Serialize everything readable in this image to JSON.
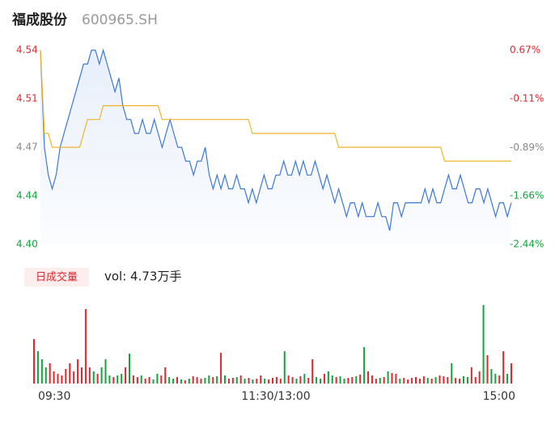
{
  "header": {
    "title": "福成股份",
    "code": "600965.SH"
  },
  "chart_data": [
    {
      "type": "line",
      "series": [
        {
          "name": "price",
          "color": "#3c78d8",
          "values": [
            4.54,
            4.47,
            4.45,
            4.44,
            4.45,
            4.47,
            4.48,
            4.49,
            4.5,
            4.51,
            4.52,
            4.53,
            4.53,
            4.54,
            4.54,
            4.53,
            4.54,
            4.53,
            4.52,
            4.51,
            4.52,
            4.5,
            4.49,
            4.49,
            4.48,
            4.48,
            4.49,
            4.48,
            4.48,
            4.49,
            4.48,
            4.47,
            4.48,
            4.49,
            4.48,
            4.47,
            4.47,
            4.46,
            4.46,
            4.45,
            4.46,
            4.46,
            4.47,
            4.45,
            4.44,
            4.45,
            4.44,
            4.45,
            4.44,
            4.44,
            4.45,
            4.44,
            4.44,
            4.43,
            4.44,
            4.43,
            4.44,
            4.45,
            4.44,
            4.44,
            4.45,
            4.45,
            4.46,
            4.45,
            4.45,
            4.46,
            4.45,
            4.46,
            4.45,
            4.45,
            4.46,
            4.45,
            4.44,
            4.45,
            4.44,
            4.43,
            4.44,
            4.43,
            4.42,
            4.43,
            4.43,
            4.42,
            4.43,
            4.42,
            4.42,
            4.42,
            4.43,
            4.42,
            4.42,
            4.41,
            4.43,
            4.43,
            4.42,
            4.43,
            4.43,
            4.43,
            4.43,
            4.43,
            4.44,
            4.43,
            4.44,
            4.43,
            4.43,
            4.44,
            4.45,
            4.44,
            4.44,
            4.45,
            4.44,
            4.43,
            4.43,
            4.44,
            4.44,
            4.43,
            4.44,
            4.43,
            4.42,
            4.43,
            4.43,
            4.42,
            4.43
          ]
        },
        {
          "name": "average",
          "color": "#f0b429",
          "values": [
            4.54,
            4.48,
            4.48,
            4.47,
            4.47,
            4.47,
            4.47,
            4.47,
            4.47,
            4.47,
            4.47,
            4.48,
            4.49,
            4.49,
            4.49,
            4.49,
            4.5,
            4.5,
            4.5,
            4.5,
            4.5,
            4.5,
            4.5,
            4.5,
            4.5,
            4.5,
            4.5,
            4.5,
            4.5,
            4.5,
            4.5,
            4.49,
            4.49,
            4.49,
            4.49,
            4.49,
            4.49,
            4.49,
            4.49,
            4.49,
            4.49,
            4.49,
            4.49,
            4.49,
            4.49,
            4.49,
            4.49,
            4.49,
            4.49,
            4.49,
            4.49,
            4.49,
            4.49,
            4.49,
            4.48,
            4.48,
            4.48,
            4.48,
            4.48,
            4.48,
            4.48,
            4.48,
            4.48,
            4.48,
            4.48,
            4.48,
            4.48,
            4.48,
            4.48,
            4.48,
            4.48,
            4.48,
            4.48,
            4.48,
            4.48,
            4.48,
            4.47,
            4.47,
            4.47,
            4.47,
            4.47,
            4.47,
            4.47,
            4.47,
            4.47,
            4.47,
            4.47,
            4.47,
            4.47,
            4.47,
            4.47,
            4.47,
            4.47,
            4.47,
            4.47,
            4.47,
            4.47,
            4.47,
            4.47,
            4.47,
            4.47,
            4.47,
            4.47,
            4.46,
            4.46,
            4.46,
            4.46,
            4.46,
            4.46,
            4.46,
            4.46,
            4.46,
            4.46,
            4.46,
            4.46,
            4.46,
            4.46,
            4.46,
            4.46,
            4.46,
            4.46
          ]
        }
      ],
      "xlim": [
        0,
        120
      ],
      "ylim": [
        4.4,
        4.54
      ],
      "yticks": [
        4.54,
        {
          "value": 4.505,
          "label": "4.51"
        },
        4.47,
        {
          "value": 4.435,
          "label": "4.44"
        },
        {
          "value": 4.4,
          "label": "4.40"
        }
      ],
      "y2lim": [
        -2.44,
        0.67
      ],
      "y2ticks": [
        {
          "value": 0.67,
          "label": "0.67%"
        },
        {
          "value": -0.11,
          "label": "-0.11%"
        },
        {
          "value": -0.89,
          "label": "-0.89%"
        },
        {
          "value": -1.66,
          "label": "-1.66%"
        },
        {
          "value": -2.44,
          "label": "-2.44%"
        }
      ],
      "tick_colors": [
        "#e0282e",
        "#888888",
        "#14a33c"
      ]
    },
    {
      "type": "bar",
      "title": "日成交量",
      "subtitle": "vol: 4.73万手",
      "up_color": "#e0282e",
      "down_color": "#14a33c",
      "values": [
        550,
        400,
        300,
        200,
        250,
        150,
        120,
        100,
        180,
        250,
        150,
        300,
        200,
        920,
        200,
        150,
        120,
        200,
        300,
        100,
        80,
        100,
        120,
        200,
        370,
        100,
        80,
        100,
        60,
        80,
        50,
        120,
        100,
        200,
        80,
        60,
        80,
        50,
        40,
        60,
        90,
        80,
        60,
        70,
        100,
        80,
        90,
        380,
        100,
        60,
        70,
        80,
        100,
        60,
        70,
        50,
        60,
        100,
        60,
        50,
        70,
        80,
        60,
        400,
        100,
        80,
        60,
        90,
        120,
        70,
        300,
        80,
        60,
        120,
        150,
        100,
        80,
        90,
        60,
        70,
        80,
        90,
        110,
        450,
        150,
        100,
        60,
        70,
        80,
        150,
        130,
        120,
        60,
        70,
        50,
        70,
        80,
        60,
        90,
        70,
        60,
        80,
        100,
        90,
        80,
        250,
        70,
        60,
        90,
        80,
        200,
        80,
        150,
        970,
        350,
        180,
        120,
        100,
        400,
        120,
        250
      ],
      "xlim": [
        0,
        120
      ],
      "ylim": [
        0,
        1000
      ],
      "xticks": [
        {
          "value": 0,
          "label": "09:30"
        },
        {
          "value": 60,
          "label": "11:30/13:00"
        },
        {
          "value": 120,
          "label": "15:00"
        }
      ]
    }
  ]
}
